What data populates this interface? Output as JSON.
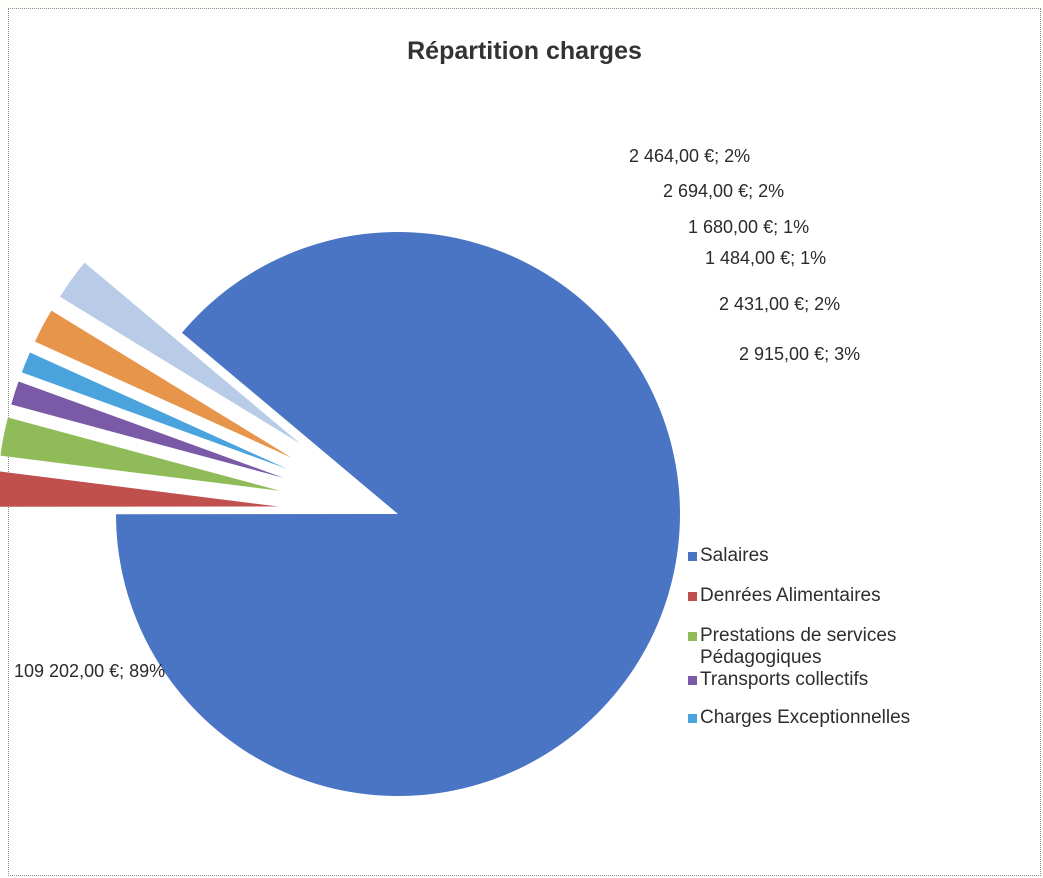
{
  "chart_data": {
    "type": "pie",
    "title": "Répartition charges",
    "currency": "€",
    "slices": [
      {
        "label": "Salaires",
        "value": 109202.0,
        "data_label": "109 202,00 €; 89%",
        "color": "#4a74c4",
        "exploded": false
      },
      {
        "label": "Denrées Alimentaires",
        "value": 2464.0,
        "data_label": "2 464,00 €; 2%",
        "color": "#c0504d",
        "exploded": true
      },
      {
        "label": "Prestations de services Pédagogiques",
        "value": 2694.0,
        "data_label": "2 694,00 €; 2%",
        "color": "#8fbc58",
        "exploded": true
      },
      {
        "label": "Transports collectifs",
        "value": 1680.0,
        "data_label": "1 680,00 €; 1%",
        "color": "#7a5aa6",
        "exploded": true
      },
      {
        "label": "Charges Exceptionnelles",
        "value": 1484.0,
        "data_label": "1 484,00 €; 1%",
        "color": "#4aa3dd",
        "exploded": true
      },
      {
        "label": "",
        "value": 2431.0,
        "data_label": "2 431,00 €; 2%",
        "color": "#e6954a",
        "exploded": true
      },
      {
        "label": "",
        "value": 2915.0,
        "data_label": "2 915,00 €; 3%",
        "color": "#b8cce8",
        "exploded": true
      }
    ],
    "legend": {
      "position": "bottom-right",
      "items": [
        "Salaires",
        "Denrées Alimentaires",
        "Prestations de services Pédagogiques",
        "Transports collectifs",
        "Charges Exceptionnelles"
      ]
    }
  }
}
